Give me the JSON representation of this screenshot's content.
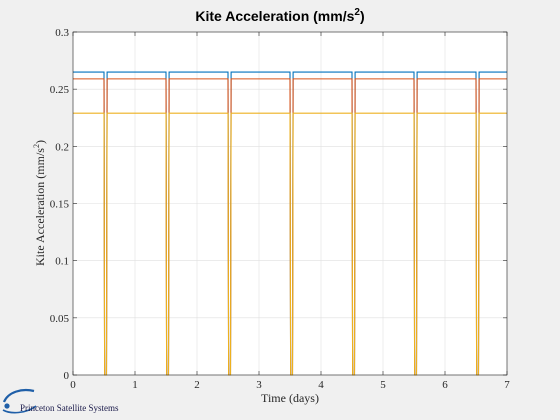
{
  "chart_data": {
    "type": "line",
    "title": "Kite Acceleration (mm/s",
    "title_superscript": "2",
    "title_close": ")",
    "xlabel": "Time (days)",
    "ylabel": "Kite Acceleration (mm/s",
    "ylabel_superscript": "2",
    "ylabel_close": ")",
    "xlim": [
      0,
      7
    ],
    "ylim": [
      0,
      0.3
    ],
    "xticks": [
      "0",
      "1",
      "2",
      "3",
      "4",
      "5",
      "6",
      "7"
    ],
    "yticks": [
      "0",
      "0.05",
      "0.1",
      "0.15",
      "0.2",
      "0.25",
      "0.3"
    ],
    "grid": true,
    "legend": "none",
    "series": [
      {
        "color": "#0072bd",
        "level": 0.265,
        "x": [
          0,
          0.5,
          0.51,
          0.54,
          0.55,
          1.5,
          1.51,
          1.54,
          1.55,
          2.5,
          2.51,
          2.54,
          2.55,
          3.5,
          3.51,
          3.54,
          3.55,
          4.5,
          4.51,
          4.54,
          4.55,
          5.5,
          5.51,
          5.54,
          5.55,
          6.5,
          6.51,
          6.54,
          6.55,
          7
        ],
        "y": [
          0.265,
          0.265,
          0,
          0,
          0.265,
          0.265,
          0,
          0,
          0.265,
          0.265,
          0,
          0,
          0.265,
          0.265,
          0,
          0,
          0.265,
          0.265,
          0,
          0,
          0.265,
          0.265,
          0,
          0,
          0.265,
          0.265,
          0,
          0,
          0.265,
          0.265
        ]
      },
      {
        "color": "#d95319",
        "level": 0.259,
        "x": [
          0,
          0.5,
          0.51,
          0.54,
          0.55,
          1.5,
          1.51,
          1.54,
          1.55,
          2.5,
          2.51,
          2.54,
          2.55,
          3.5,
          3.51,
          3.54,
          3.55,
          4.5,
          4.51,
          4.54,
          4.55,
          5.5,
          5.51,
          5.54,
          5.55,
          6.5,
          6.51,
          6.54,
          6.55,
          7
        ],
        "y": [
          0.259,
          0.259,
          0,
          0,
          0.259,
          0.259,
          0,
          0,
          0.259,
          0.259,
          0,
          0,
          0.259,
          0.259,
          0,
          0,
          0.259,
          0.259,
          0,
          0,
          0.259,
          0.259,
          0,
          0,
          0.259,
          0.259,
          0,
          0,
          0.259,
          0.259
        ]
      },
      {
        "color": "#edb120",
        "level": 0.229,
        "x": [
          0,
          0.5,
          0.51,
          0.54,
          0.55,
          1.5,
          1.51,
          1.54,
          1.55,
          2.5,
          2.51,
          2.54,
          2.55,
          3.5,
          3.51,
          3.54,
          3.55,
          4.5,
          4.51,
          4.54,
          4.55,
          5.5,
          5.51,
          5.54,
          5.55,
          6.5,
          6.51,
          6.54,
          6.55,
          7
        ],
        "y": [
          0.229,
          0.229,
          0,
          0,
          0.229,
          0.229,
          0,
          0,
          0.229,
          0.229,
          0,
          0,
          0.229,
          0.229,
          0,
          0,
          0.229,
          0.229,
          0,
          0,
          0.229,
          0.229,
          0,
          0,
          0.229,
          0.229,
          0,
          0,
          0.229,
          0.229
        ]
      }
    ]
  },
  "logo": {
    "text": "Princeton Satellite Systems",
    "icon": "pss-logo-swoosh-icon"
  },
  "colors": {
    "figure_background": "#f0f0f0",
    "axes_background": "#ffffff",
    "grid": "#dfdfdf",
    "axis": "#262626"
  }
}
